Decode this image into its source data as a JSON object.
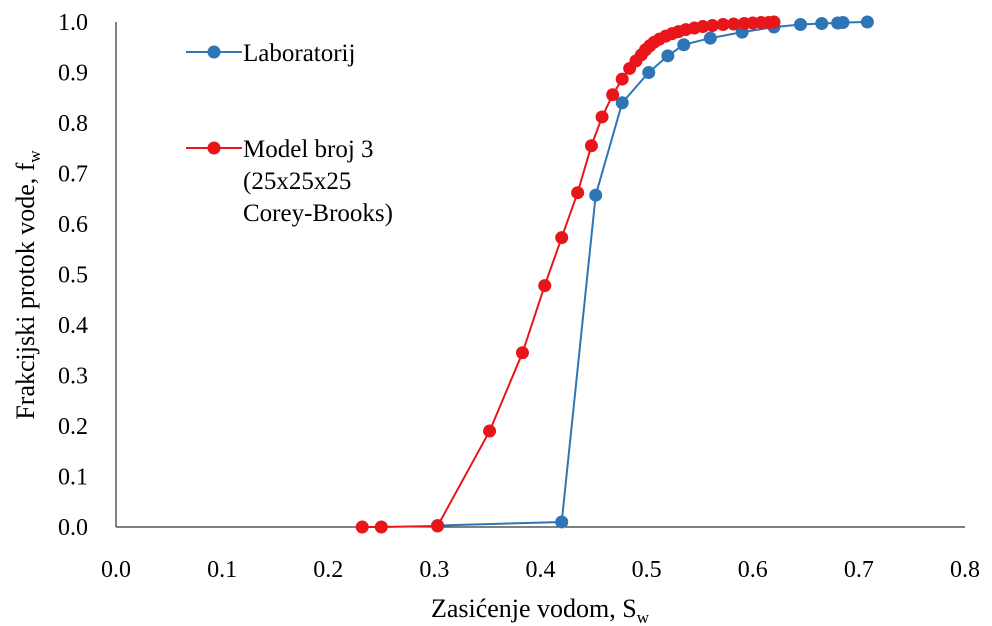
{
  "chart_data": {
    "type": "line",
    "title": "",
    "xlabel": "Zasićenje vodom, S",
    "xlabel_sub": "w",
    "ylabel": "Frakcijski protok vode, f",
    "ylabel_sub": "w",
    "xlim": [
      0.0,
      0.8
    ],
    "ylim": [
      0.0,
      1.0
    ],
    "x_ticks": [
      "0.0",
      "0.1",
      "0.2",
      "0.3",
      "0.4",
      "0.5",
      "0.6",
      "0.7",
      "0.8"
    ],
    "y_ticks": [
      "0.0",
      "0.1",
      "0.2",
      "0.3",
      "0.4",
      "0.5",
      "0.6",
      "0.7",
      "0.8",
      "0.9",
      "1.0"
    ],
    "grid": false,
    "legend_position": "top-left",
    "series": [
      {
        "name": "Laboratorij",
        "legend_lines": [
          "Laboratorij"
        ],
        "color": "#2E75B6",
        "x": [
          0.303,
          0.42,
          0.452,
          0.477,
          0.502,
          0.52,
          0.535,
          0.56,
          0.59,
          0.62,
          0.645,
          0.665,
          0.68,
          0.685,
          0.708
        ],
        "y": [
          0.003,
          0.01,
          0.657,
          0.84,
          0.9,
          0.933,
          0.955,
          0.968,
          0.98,
          0.99,
          0.995,
          0.997,
          0.998,
          0.999,
          1.0
        ]
      },
      {
        "name": "Model broj 3 (25x25x25 Corey-Brooks)",
        "legend_lines": [
          "Model broj 3",
          "(25x25x25",
          "Corey-Brooks)"
        ],
        "color": "#E8161B",
        "x": [
          0.232,
          0.25,
          0.303,
          0.352,
          0.383,
          0.404,
          0.42,
          0.435,
          0.448,
          0.458,
          0.468,
          0.477,
          0.484,
          0.49,
          0.495,
          0.499,
          0.503,
          0.507,
          0.512,
          0.518,
          0.524,
          0.53,
          0.537,
          0.545,
          0.553,
          0.562,
          0.572,
          0.582,
          0.592,
          0.6,
          0.608,
          0.615,
          0.62
        ],
        "y": [
          0.0,
          0.0,
          0.002,
          0.19,
          0.345,
          0.478,
          0.573,
          0.662,
          0.755,
          0.812,
          0.856,
          0.887,
          0.908,
          0.923,
          0.935,
          0.945,
          0.953,
          0.96,
          0.966,
          0.972,
          0.977,
          0.981,
          0.985,
          0.988,
          0.991,
          0.993,
          0.995,
          0.996,
          0.997,
          0.998,
          0.999,
          0.999,
          1.0
        ]
      }
    ]
  }
}
